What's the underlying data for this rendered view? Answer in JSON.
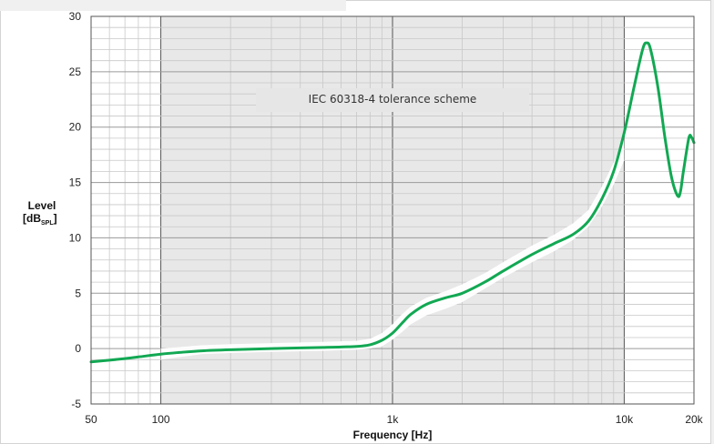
{
  "chart_data": {
    "type": "line",
    "title": "",
    "xlabel": "Frequency [Hz]",
    "ylabel_main": "Level",
    "ylabel_unit_open": "[dB",
    "ylabel_unit_sub": "SPL",
    "ylabel_unit_close": "]",
    "x_scale": "log",
    "xlim": [
      50,
      20000
    ],
    "ylim": [
      -5,
      30
    ],
    "x_ticks": [
      {
        "value": 50,
        "label": "50"
      },
      {
        "value": 100,
        "label": "100"
      },
      {
        "value": 1000,
        "label": "1k"
      },
      {
        "value": 10000,
        "label": "10k"
      },
      {
        "value": 20000,
        "label": "20k"
      }
    ],
    "y_ticks": [
      -5,
      0,
      5,
      10,
      15,
      20,
      25,
      30
    ],
    "grid": true,
    "annotation": "IEC 60318-4 tolerance scheme",
    "shaded_band": [
      100,
      10000
    ],
    "colors": {
      "curve": "#12a853",
      "band": "#e8e8e8",
      "tolerance": "#ffffff",
      "grid_minor": "#c8c8c8",
      "grid_major": "#555555"
    },
    "series": [
      {
        "x": [
          50,
          60,
          70,
          80,
          100,
          120,
          150,
          200,
          300,
          500,
          700,
          800,
          900,
          1000,
          1100,
          1200,
          1400,
          1700,
          2000,
          2500,
          3000,
          4000,
          5000,
          6000,
          7000,
          8000,
          9000,
          10000,
          11000,
          12000,
          12500,
          13000,
          14000,
          15000,
          16000,
          17000,
          17500,
          18000,
          19000,
          19500,
          20000
        ],
        "y": [
          -1.2,
          -1.05,
          -0.9,
          -0.75,
          -0.5,
          -0.35,
          -0.2,
          -0.1,
          0,
          0.1,
          0.2,
          0.35,
          0.75,
          1.4,
          2.3,
          3.1,
          4.0,
          4.6,
          5.0,
          6.0,
          7.0,
          8.5,
          9.5,
          10.3,
          11.5,
          13.5,
          16.0,
          19.5,
          23.5,
          27.0,
          27.6,
          27.0,
          23.5,
          19.0,
          15.5,
          13.8,
          14.2,
          16.0,
          19.0,
          19.1,
          18.6
        ]
      }
    ],
    "tolerance_scheme": {
      "x": [
        100,
        150,
        200,
        300,
        500,
        700,
        800,
        900,
        1000,
        1100,
        1200,
        1400,
        1700,
        2000,
        2500,
        3000,
        4000,
        5000,
        6000,
        7000,
        8000,
        9000,
        10000
      ],
      "lower": [
        -1.0,
        -0.5,
        -0.4,
        -0.3,
        -0.2,
        -0.1,
        0.0,
        0.2,
        0.8,
        1.5,
        2.2,
        3.0,
        3.6,
        4.2,
        5.4,
        6.4,
        7.8,
        8.8,
        9.8,
        11.0,
        12.8,
        14.8,
        17.0
      ],
      "upper": [
        0.0,
        0.3,
        0.4,
        0.5,
        0.6,
        0.7,
        0.9,
        1.4,
        2.2,
        3.1,
        3.8,
        4.6,
        5.2,
        5.8,
        6.8,
        7.8,
        9.3,
        10.3,
        11.3,
        12.5,
        14.6,
        16.8,
        19.0
      ]
    }
  }
}
